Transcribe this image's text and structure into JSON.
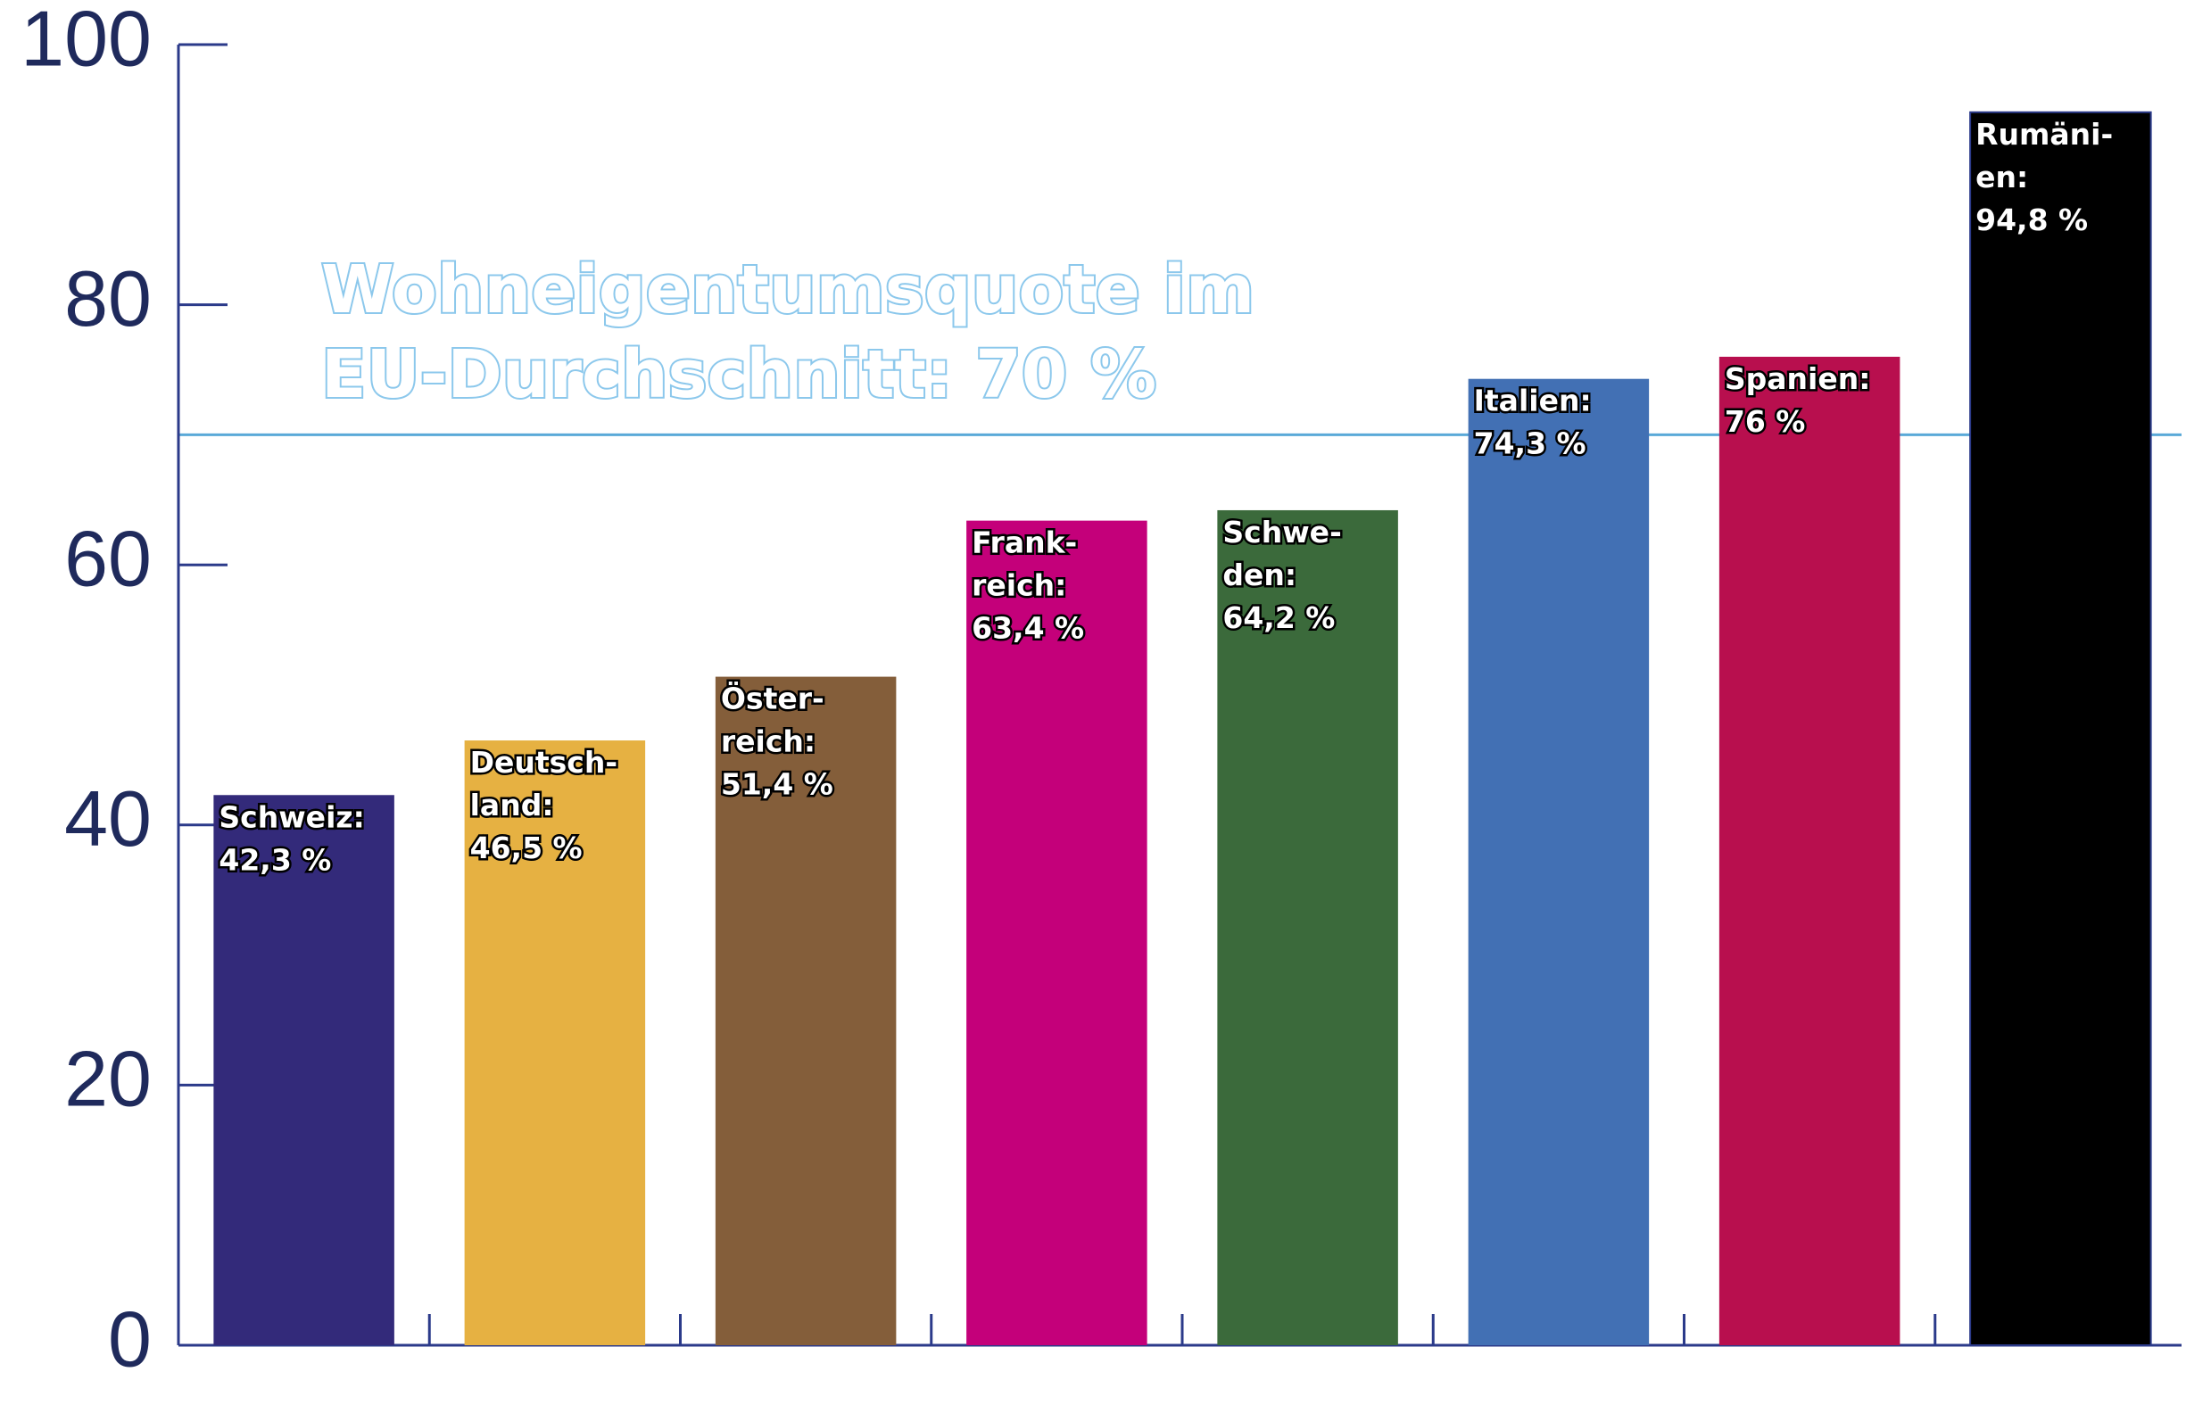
{
  "chart_data": {
    "type": "bar",
    "categories": [
      [
        "Schweiz:"
      ],
      [
        "Deutsch-",
        "land:"
      ],
      [
        "Öster-",
        "reich:"
      ],
      [
        "Frank-",
        "reich:"
      ],
      [
        "Schwe-",
        "den:"
      ],
      [
        "Italien:"
      ],
      [
        "Spanien:"
      ],
      [
        "Rumäni-",
        "en:"
      ]
    ],
    "values": [
      42.3,
      46.5,
      51.4,
      63.4,
      64.2,
      74.3,
      76,
      94.8
    ],
    "value_labels": [
      "42,3 %",
      "46,5 %",
      "51,4 %",
      "63,4 %",
      "64,2 %",
      "74,3 %",
      "76 %",
      "94,8 %"
    ],
    "colors": [
      "#332a7a",
      "#e6b142",
      "#845e3a",
      "#c4007a",
      "#3b6a3b",
      "#4270b4",
      "#b80f4e",
      "#000000"
    ],
    "ylim": [
      0,
      100
    ],
    "yticks": [
      0,
      20,
      40,
      60,
      80,
      100
    ],
    "grid": false,
    "reference_line": {
      "value": 70,
      "color": "#5aa9d8",
      "label": [
        "Wohneigentumsquote im",
        "EU-Durchschnitt: 70 %"
      ]
    }
  }
}
